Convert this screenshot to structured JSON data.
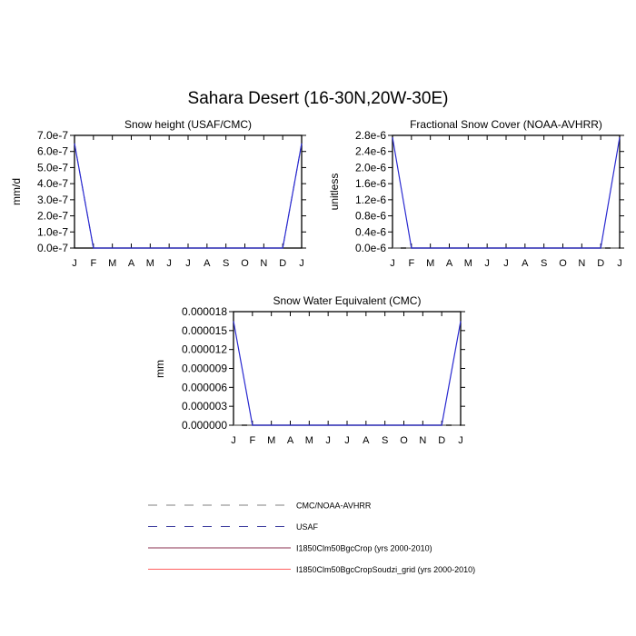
{
  "figure": {
    "title": "Sahara Desert (16-30N,20W-30E)"
  },
  "months": [
    "J",
    "F",
    "M",
    "A",
    "M",
    "J",
    "J",
    "A",
    "S",
    "O",
    "N",
    "D",
    "J"
  ],
  "colors": {
    "cmc_noaa": "#7f7f7f",
    "usaf": "#4040a0",
    "bgc_crop": "#8a2f4f",
    "bgc_crop_soudzi": "#ff6060",
    "model_line": "#2a2ad0"
  },
  "chart_data": [
    {
      "type": "line",
      "title": "Snow height (USAF/CMC)",
      "ylabel": "mm/d",
      "xlabel": "",
      "ylim": [
        0,
        7e-07
      ],
      "yticks": [
        "0.0e-7",
        "1.0e-7",
        "2.0e-7",
        "3.0e-7",
        "4.0e-7",
        "5.0e-7",
        "6.0e-7",
        "7.0e-7"
      ],
      "series": [
        {
          "name": "USAF",
          "values": [
            6.5e-07,
            0,
            0,
            0,
            0,
            0,
            0,
            0,
            0,
            0,
            0,
            0,
            6.5e-07
          ]
        },
        {
          "name": "I1850Clm50BgcCrop (yrs 2000-2010)",
          "values": [
            6.5e-07,
            0,
            0,
            0,
            0,
            0,
            0,
            0,
            0,
            0,
            0,
            0,
            6.5e-07
          ]
        }
      ]
    },
    {
      "type": "line",
      "title": "Fractional Snow Cover (NOAA-AVHRR)",
      "ylabel": "unitless",
      "xlabel": "",
      "ylim": [
        0,
        2.8e-06
      ],
      "yticks": [
        "0.0e-6",
        "0.4e-6",
        "0.8e-6",
        "1.2e-6",
        "1.6e-6",
        "2.0e-6",
        "2.4e-6",
        "2.8e-6"
      ],
      "series": [
        {
          "name": "CMC/NOAA-AVHRR",
          "values": [
            0,
            0,
            0,
            0,
            0,
            0,
            0,
            0,
            0,
            0,
            0,
            0,
            0
          ]
        },
        {
          "name": "I1850Clm50BgcCrop (yrs 2000-2010)",
          "values": [
            2.75e-06,
            0,
            0,
            0,
            0,
            0,
            0,
            0,
            0,
            0,
            0,
            0,
            2.75e-06
          ]
        }
      ]
    },
    {
      "type": "line",
      "title": "Snow Water Equivalent (CMC)",
      "ylabel": "mm",
      "xlabel": "",
      "ylim": [
        0,
        1.8e-05
      ],
      "yticks": [
        "0.000000",
        "0.000003",
        "0.000006",
        "0.000009",
        "0.000012",
        "0.000015",
        "0.000018"
      ],
      "series": [
        {
          "name": "CMC/NOAA-AVHRR",
          "values": [
            0,
            0,
            0,
            0,
            0,
            0,
            0,
            0,
            0,
            0,
            0,
            0,
            0
          ]
        },
        {
          "name": "I1850Clm50BgcCrop (yrs 2000-2010)",
          "values": [
            1.65e-05,
            0,
            0,
            0,
            0,
            0,
            0,
            0,
            0,
            0,
            0,
            0,
            1.65e-05
          ]
        }
      ]
    }
  ],
  "legend": {
    "placement": "bottom-center",
    "entries": [
      {
        "label": "CMC/NOAA-AVHRR",
        "style": "dashed",
        "color": "#7f7f7f"
      },
      {
        "label": "USAF",
        "style": "dashed",
        "color": "#4040a0"
      },
      {
        "label": "I1850Clm50BgcCrop (yrs 2000-2010)",
        "style": "solid",
        "color": "#8a2f4f"
      },
      {
        "label": "I1850Clm50BgcCropSoudzi_grid (yrs 2000-2010)",
        "style": "solid",
        "color": "#ff6060"
      }
    ]
  }
}
